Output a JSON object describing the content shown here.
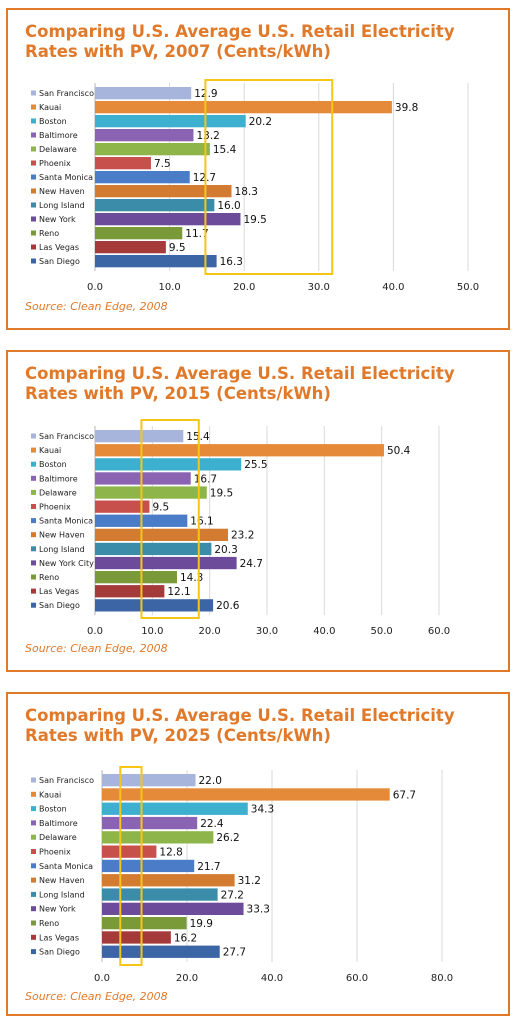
{
  "chart_data": [
    {
      "type": "bar",
      "title": "Comparing U.S. Average U.S. Retail Electricity Rates with PV, 2007 (Cents/kWh)",
      "source": "Source: Clean Edge, 2008",
      "categories": [
        "San Francisco",
        "Kauai",
        "Boston",
        "Baltimore",
        "Delaware",
        "Phoenix",
        "Santa Monica",
        "New Haven",
        "Long Island",
        "New York",
        "Reno",
        "Las Vegas",
        "San Diego"
      ],
      "values": [
        12.9,
        39.8,
        20.2,
        13.2,
        15.4,
        7.5,
        12.7,
        18.3,
        16.0,
        19.5,
        11.7,
        9.5,
        16.3
      ],
      "value_labels": [
        "12.9",
        "39.8",
        "20.2",
        "13.2",
        "15.4",
        "7.5",
        "12.7",
        "18.3",
        "16.0",
        "19.5",
        "11.7",
        "9.5",
        "16.3"
      ],
      "xlim": [
        0,
        50
      ],
      "xticks": [
        "0.0",
        "10.0",
        "20.0",
        "30.0",
        "40.0",
        "50.0"
      ],
      "highlight_range": [
        14.8,
        31.8
      ],
      "grid": true
    },
    {
      "type": "bar",
      "title": "Comparing U.S. Average U.S. Retail Electricity Rates with PV, 2015 (Cents/kWh)",
      "source": "Source: Clean Edge, 2008",
      "categories": [
        "San Francisco",
        "Kauai",
        "Boston",
        "Baltimore",
        "Delaware",
        "Phoenix",
        "Santa Monica",
        "New Haven",
        "Long Island",
        "New York City",
        "Reno",
        "Las Vegas",
        "San Diego"
      ],
      "values": [
        15.4,
        50.4,
        25.5,
        16.7,
        19.5,
        9.5,
        16.1,
        23.2,
        20.3,
        24.7,
        14.3,
        12.1,
        20.6
      ],
      "value_labels": [
        "15.4",
        "50.4",
        "25.5",
        "16.7",
        "19.5",
        "9.5",
        "16.1",
        "23.2",
        "20.3",
        "24.7",
        "14.3",
        "12.1",
        "20.6"
      ],
      "xlim": [
        0,
        60
      ],
      "xticks": [
        "0.0",
        "10.0",
        "20.0",
        "30.0",
        "40.0",
        "50.0",
        "60.0"
      ],
      "highlight_range": [
        8.1,
        18.1
      ],
      "grid": true
    },
    {
      "type": "bar",
      "title": "Comparing U.S. Average U.S. Retail Electricity Rates with PV, 2025 (Cents/kWh)",
      "source": "Source: Clean Edge, 2008",
      "categories": [
        "San Francisco",
        "Kauai",
        "Boston",
        "Baltimore",
        "Delaware",
        "Phoenix",
        "Santa Monica",
        "New Haven",
        "Long Island",
        "New York",
        "Reno",
        "Las Vegas",
        "San Diego"
      ],
      "values": [
        22.0,
        67.7,
        34.3,
        22.4,
        26.2,
        12.8,
        21.7,
        31.2,
        27.2,
        33.3,
        19.9,
        16.2,
        27.7
      ],
      "value_labels": [
        "22.0",
        "67.7",
        "34.3",
        "22.4",
        "26.2",
        "12.8",
        "21.7",
        "31.2",
        "27.2",
        "33.3",
        "19.9",
        "16.2",
        "27.7"
      ],
      "xlim": [
        0,
        80
      ],
      "xticks": [
        "0.0",
        "20.0",
        "40.0",
        "60.0",
        "80.0"
      ],
      "highlight_range": [
        4.3,
        9.3
      ],
      "grid": true
    }
  ],
  "colors": {
    "accent": "#e07a2a",
    "highlight_box": "#f5c518",
    "bars": [
      "#a7b5dc",
      "#e58a38",
      "#3db0d0",
      "#8a64b2",
      "#8eb54a",
      "#c8504c",
      "#4a7cc8",
      "#d47b32",
      "#3a8ca8",
      "#6b4b9a",
      "#7a9a3a",
      "#a53a3a",
      "#3c65a5"
    ]
  }
}
